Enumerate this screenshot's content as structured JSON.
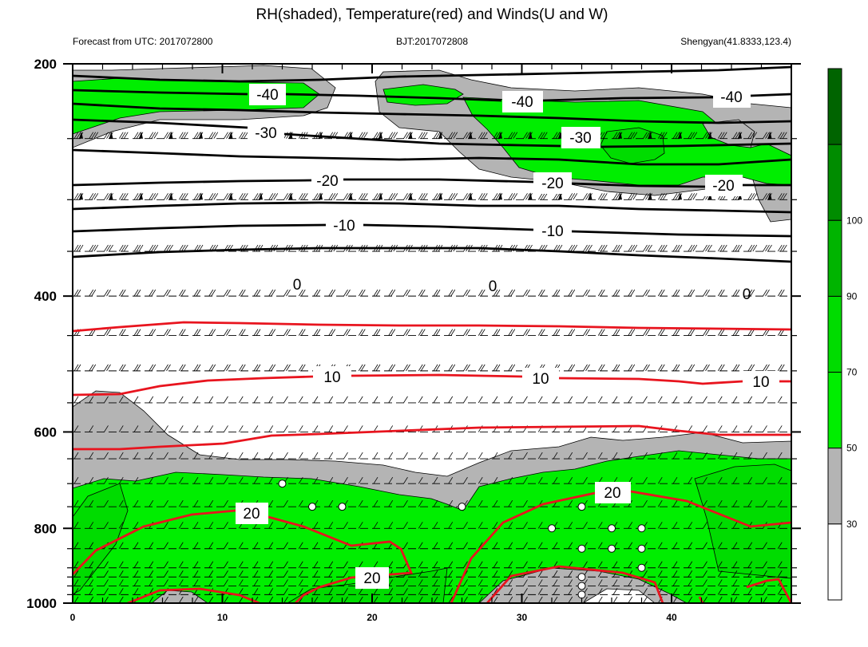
{
  "chart_data": {
    "type": "area",
    "title": "RH(shaded), Temperature(red) and Winds(U and W)",
    "left_string": "Forecast from UTC: 2017072800",
    "center_string": "BJT:2017072808",
    "right_string": "Shengyan(41.8333,123.4)",
    "xlim": [
      0,
      48
    ],
    "ylim": [
      200,
      1000
    ],
    "y_scale": "log",
    "y_reversed": true,
    "x_ticks": [
      "0",
      "10",
      "20",
      "30",
      "40"
    ],
    "y_ticks": [
      "200",
      "400",
      "600",
      "800",
      "1000"
    ],
    "pressure_levels": [
      200,
      250,
      300,
      350,
      400,
      450,
      500,
      550,
      600,
      650,
      700,
      750,
      800,
      850,
      900,
      925,
      950,
      975,
      1000
    ],
    "colorbar": {
      "levels": [
        "30",
        "50",
        "70",
        "90",
        "100"
      ],
      "colors": [
        "#ffffff",
        "#b4b4b4",
        "#00ee00",
        "#00dc00",
        "#00b400",
        "#008c00",
        "#006400"
      ]
    },
    "temperature_contour_labels": {
      "black": [
        "-40",
        "-40",
        "-40",
        "-30",
        "-30",
        "-20",
        "-20",
        "-20",
        "-10",
        "-10",
        "0",
        "0",
        "0"
      ],
      "red": [
        "10",
        "10",
        "10",
        "20",
        "20",
        "20"
      ]
    },
    "vertical_motion_markers": [
      {
        "x": 14,
        "p": 700
      },
      {
        "x": 16,
        "p": 750
      },
      {
        "x": 18,
        "p": 750
      },
      {
        "x": 26,
        "p": 750
      },
      {
        "x": 34,
        "p": 750
      },
      {
        "x": 32,
        "p": 800
      },
      {
        "x": 36,
        "p": 800
      },
      {
        "x": 38,
        "p": 800
      },
      {
        "x": 34,
        "p": 850
      },
      {
        "x": 36,
        "p": 850
      },
      {
        "x": 38,
        "p": 850
      },
      {
        "x": 38,
        "p": 900
      },
      {
        "x": 34,
        "p": 925
      },
      {
        "x": 34,
        "p": 950
      },
      {
        "x": 34,
        "p": 975
      }
    ]
  }
}
